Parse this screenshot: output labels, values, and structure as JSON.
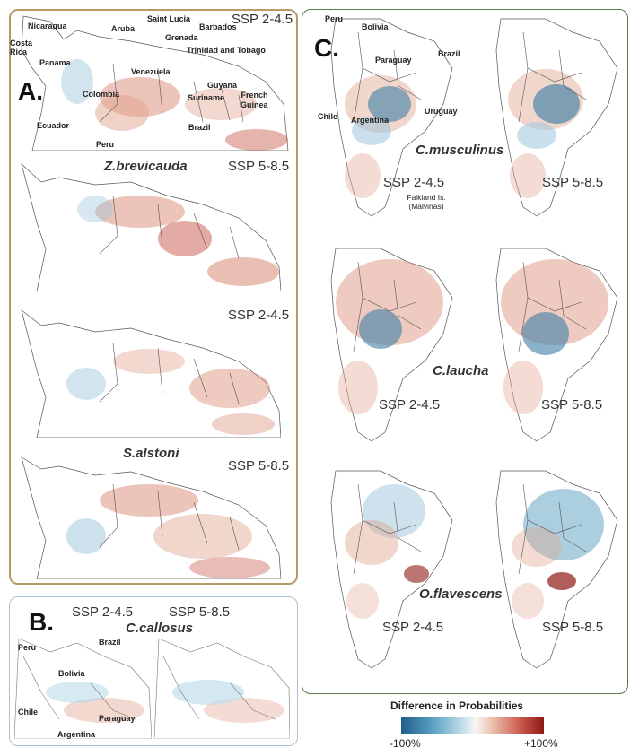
{
  "panels": {
    "a": {
      "letter": "A.",
      "maps": [
        {
          "scenario": "SSP 2-4.5",
          "species": ""
        },
        {
          "scenario": "SSP 5-8.5",
          "species": "Z.brevicauda"
        },
        {
          "scenario": "SSP 2-4.5",
          "species": ""
        },
        {
          "scenario": "SSP 5-8.5",
          "species": "S.alstoni"
        }
      ],
      "country_labels": {
        "nicaragua": "Nicaragua",
        "costa_rica": "Costa\nRica",
        "panama": "Panama",
        "aruba": "Aruba",
        "saint_lucia": "Saint Lucia",
        "barbados": "Barbados",
        "grenada": "Grenada",
        "trinidad": "Trinidad and Tobago",
        "venezuela": "Venezuela",
        "colombia": "Colombia",
        "guyana": "Guyana",
        "suriname": "Suriname",
        "french_guiana": "French\nGuinea",
        "ecuador": "Ecuador",
        "peru": "Peru",
        "brazil": "Brazil"
      }
    },
    "b": {
      "letter": "B.",
      "species": "C.callosus",
      "scenarios": [
        "SSP 2-4.5",
        "SSP 5-8.5"
      ],
      "country_labels": {
        "peru": "Peru",
        "brazil": "Brazil",
        "bolivia": "Bolivia",
        "chile": "Chile",
        "paraguay": "Paraguay",
        "argentina": "Argentina"
      }
    },
    "c": {
      "letter": "C.",
      "species": [
        "C.musculinus",
        "C.laucha",
        "O.flavescens"
      ],
      "scenarios": [
        "SSP 2-4.5",
        "SSP 5-8.5"
      ],
      "country_labels": {
        "peru": "Peru",
        "bolivia": "Bolivia",
        "paraguay": "Paraguay",
        "brazil": "Brazil",
        "chile": "Chile",
        "argentina": "Argentina",
        "uruguay": "Uruguay",
        "falklands": "Falkland Is.\n(Malvinas)"
      }
    }
  },
  "legend": {
    "title": "Difference in Probabilities",
    "min_label": "-100%",
    "max_label": "+100%"
  },
  "colors": {
    "panel_a_border": "#b89a66",
    "panel_b_border": "#a9c0d8",
    "panel_c_border": "#5c7a4c",
    "positive": "#c9584a",
    "negative": "#5aa0c2"
  }
}
